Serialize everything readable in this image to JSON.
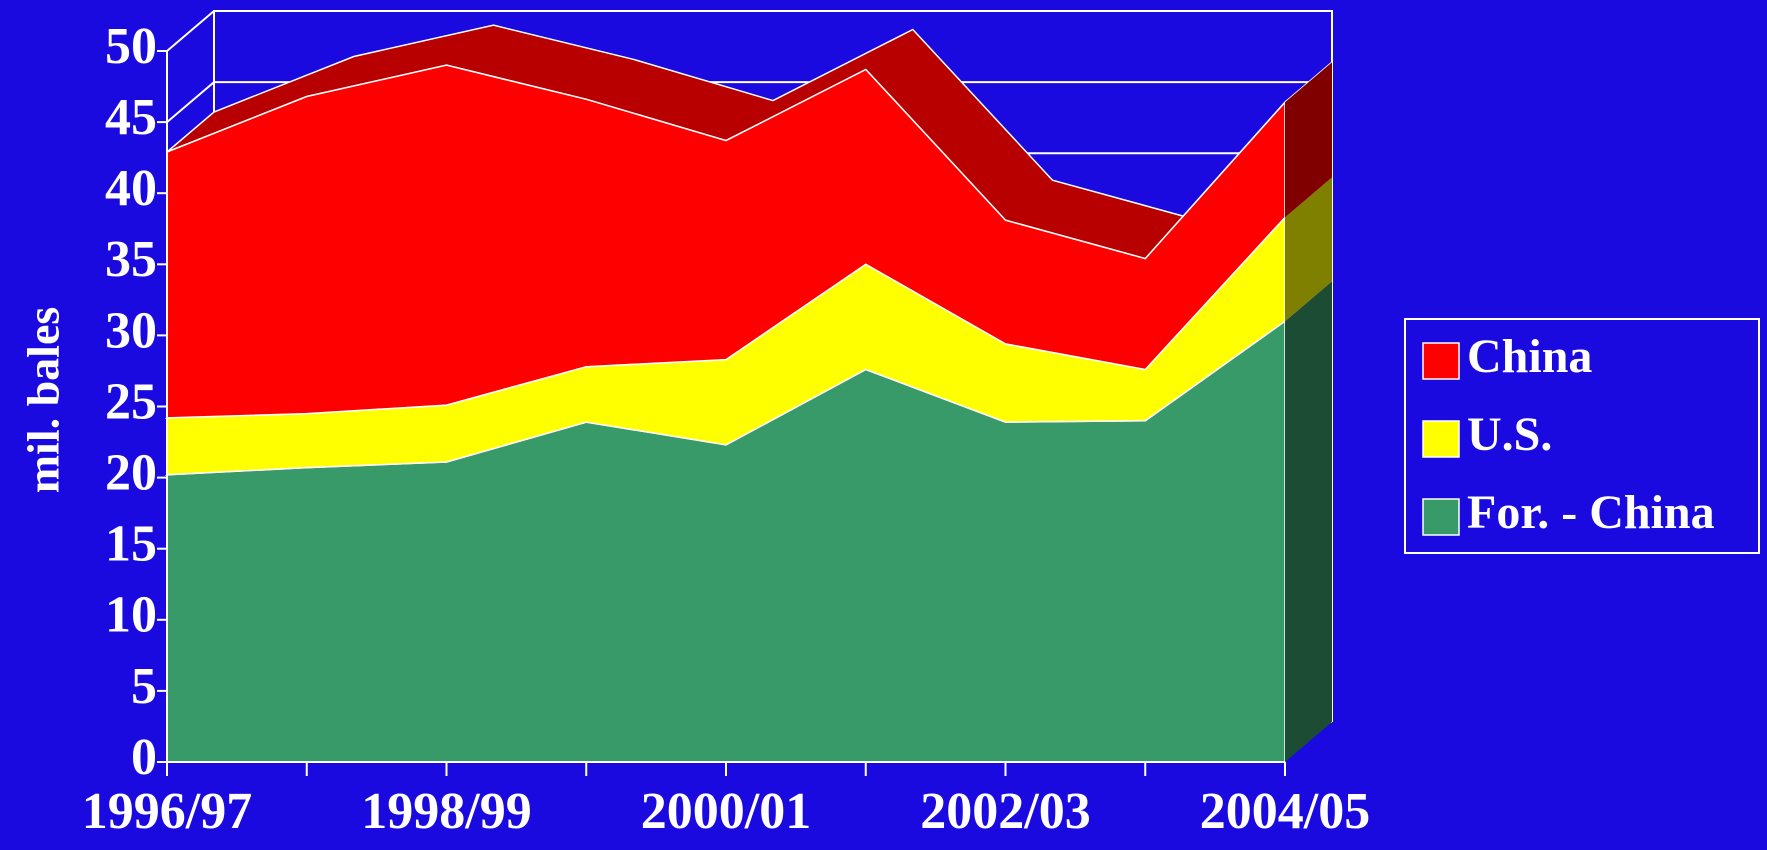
{
  "chart_data": {
    "type": "stacked-area",
    "y_label": "mil. bales",
    "categories": [
      "1996/97",
      null,
      "1998/99",
      null,
      "2000/01",
      null,
      "2002/03",
      null,
      "2004/05"
    ],
    "series": [
      {
        "name": "For. - China",
        "color": "#379a68",
        "values": [
          20.2,
          20.7,
          21.1,
          23.9,
          22.3,
          27.6,
          23.9,
          24.0,
          31.0
        ]
      },
      {
        "name": "U.S.",
        "color": "#ffff00",
        "values": [
          4.0,
          3.8,
          4.0,
          3.9,
          6.0,
          7.4,
          5.5,
          3.6,
          7.3
        ]
      },
      {
        "name": "China",
        "color": "#ff0000",
        "values": [
          18.7,
          22.3,
          23.9,
          18.8,
          15.4,
          13.7,
          8.7,
          7.8,
          8.1
        ]
      }
    ],
    "ylim": [
      0,
      50
    ],
    "yticks": [
      0,
      5,
      10,
      15,
      20,
      25,
      30,
      35,
      40,
      45,
      50
    ],
    "grid": true,
    "legend": "right"
  }
}
